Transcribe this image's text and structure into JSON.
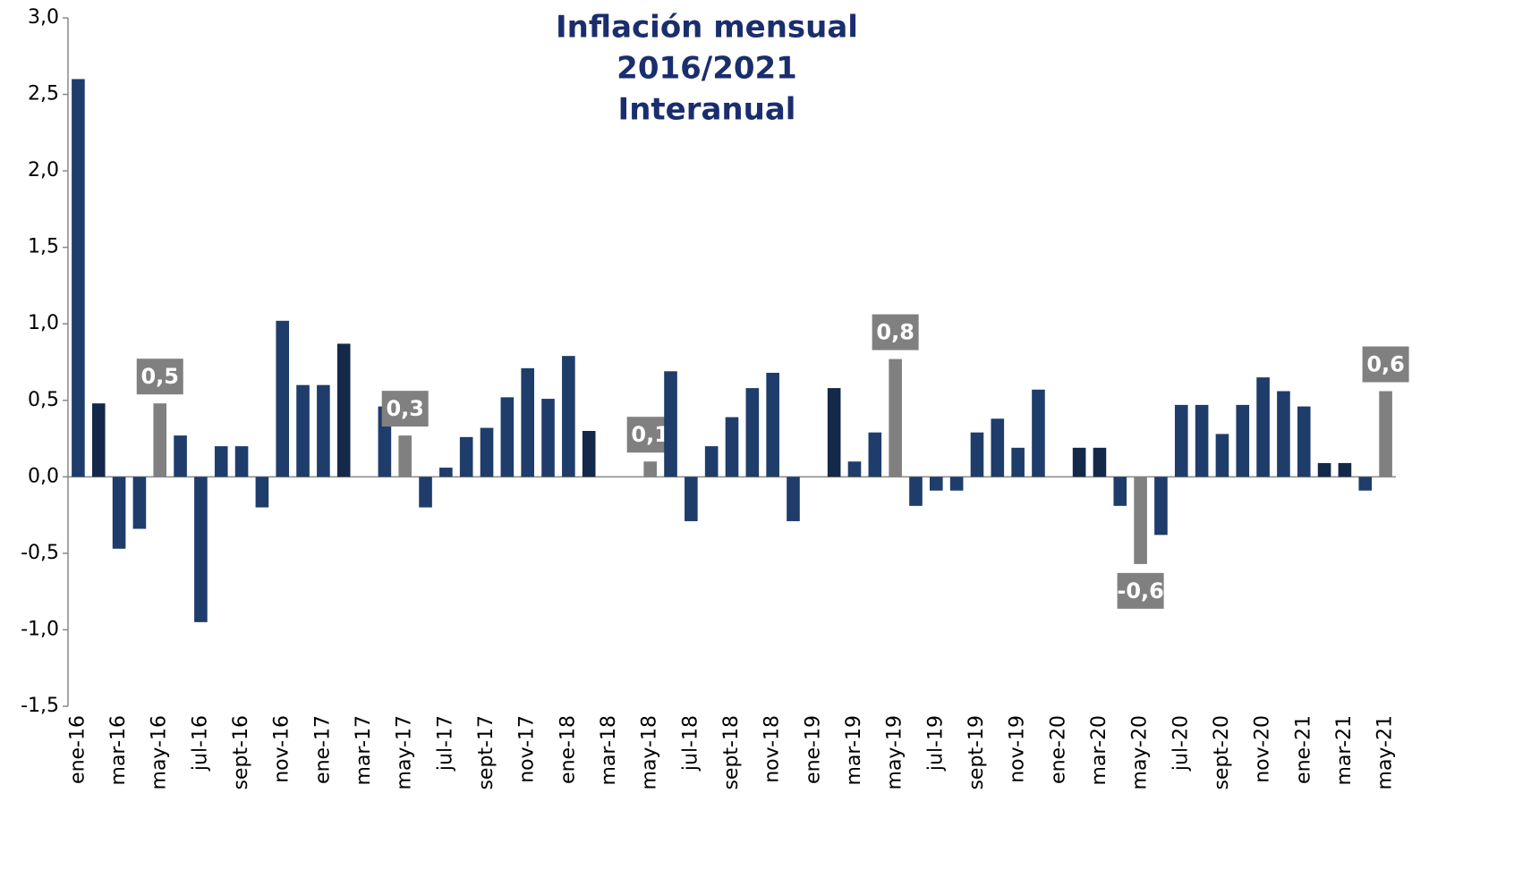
{
  "chart_data": {
    "type": "bar",
    "title_lines": [
      "Inflación mensual",
      "2016/2021",
      "Interanual"
    ],
    "categories": [
      "ene-16",
      null,
      "mar-16",
      null,
      "may-16",
      null,
      "jul-16",
      null,
      "sept-16",
      null,
      "nov-16",
      null,
      "ene-17",
      null,
      "mar-17",
      null,
      "may-17",
      null,
      "jul-17",
      null,
      "sept-17",
      null,
      "nov-17",
      null,
      "ene-18",
      null,
      "mar-18",
      null,
      "may-18",
      null,
      "jul-18",
      null,
      "sept-18",
      null,
      "nov-18",
      null,
      "ene-19",
      null,
      "mar-19",
      null,
      "may-19",
      null,
      "jul-19",
      null,
      "sept-19",
      null,
      "nov-19",
      null,
      "ene-20",
      null,
      "mar-20",
      null,
      "may-20",
      null,
      "jul-20",
      null,
      "sept-20",
      null,
      "nov-20",
      null,
      "ene-21",
      null,
      "mar-21",
      null,
      "may-21"
    ],
    "values": [
      2.6,
      0.48,
      -0.47,
      -0.34,
      0.48,
      0.27,
      -0.95,
      0.2,
      0.2,
      -0.2,
      1.02,
      0.6,
      0.6,
      0.87,
      0,
      0.46,
      0.27,
      -0.2,
      0.06,
      0.26,
      0.32,
      0.52,
      0.71,
      0.51,
      0.79,
      0.3,
      0,
      0,
      0.1,
      0.69,
      -0.29,
      0.2,
      0.39,
      0.58,
      0.68,
      -0.29,
      0,
      0.58,
      0.1,
      0.29,
      0.77,
      -0.19,
      -0.09,
      -0.09,
      0.29,
      0.38,
      0.19,
      0.57,
      0,
      0.19,
      0.19,
      -0.19,
      -0.57,
      -0.38,
      0.47,
      0.47,
      0.28,
      0.47,
      0.65,
      0.56,
      0.46,
      0.09,
      0.09,
      -0.09,
      0.56
    ],
    "value_labels": [
      null,
      null,
      null,
      null,
      "0,5",
      null,
      null,
      null,
      null,
      null,
      null,
      null,
      null,
      null,
      null,
      null,
      "0,3",
      null,
      null,
      null,
      null,
      null,
      null,
      null,
      null,
      null,
      null,
      null,
      "0,1",
      null,
      null,
      null,
      null,
      null,
      null,
      null,
      null,
      null,
      null,
      null,
      "0,8",
      null,
      null,
      null,
      null,
      null,
      null,
      null,
      null,
      null,
      null,
      null,
      "-0,6",
      null,
      null,
      null,
      null,
      null,
      null,
      null,
      null,
      null,
      null,
      null,
      "0,6"
    ],
    "colors": [
      "#1f3d6b",
      "#14284a",
      "#1f3d6b",
      "#1f3d6b",
      "#808080",
      "#1f3d6b",
      "#1f3d6b",
      "#1f3d6b",
      "#1f3d6b",
      "#1f3d6b",
      "#1f3d6b",
      "#1f3d6b",
      "#1f3d6b",
      "#14284a",
      "#1f3d6b",
      "#1f3d6b",
      "#808080",
      "#1f3d6b",
      "#1f3d6b",
      "#1f3d6b",
      "#1f3d6b",
      "#1f3d6b",
      "#1f3d6b",
      "#1f3d6b",
      "#1f3d6b",
      "#14284a",
      "#1f3d6b",
      "#1f3d6b",
      "#808080",
      "#1f3d6b",
      "#1f3d6b",
      "#1f3d6b",
      "#1f3d6b",
      "#1f3d6b",
      "#1f3d6b",
      "#1f3d6b",
      "#1f3d6b",
      "#14284a",
      "#1f3d6b",
      "#1f3d6b",
      "#808080",
      "#1f3d6b",
      "#1f3d6b",
      "#1f3d6b",
      "#1f3d6b",
      "#1f3d6b",
      "#1f3d6b",
      "#1f3d6b",
      "#1f3d6b",
      "#14284a",
      "#14284a",
      "#1f3d6b",
      "#808080",
      "#1f3d6b",
      "#1f3d6b",
      "#1f3d6b",
      "#1f3d6b",
      "#1f3d6b",
      "#1f3d6b",
      "#1f3d6b",
      "#1f3d6b",
      "#14284a",
      "#14284a",
      "#1f3d6b",
      "#808080"
    ],
    "label_box_color": "#808080",
    "ylim": [
      -1.5,
      3.0
    ],
    "yticks": [
      {
        "value": -1.5,
        "label": "-1,5"
      },
      {
        "value": -1.0,
        "label": "-1,0"
      },
      {
        "value": -0.5,
        "label": "-0,5"
      },
      {
        "value": 0,
        "label": "0,0"
      },
      {
        "value": 0.5,
        "label": "0,5"
      },
      {
        "value": 1.0,
        "label": "1,0"
      },
      {
        "value": 1.5,
        "label": "1,5"
      },
      {
        "value": 2.0,
        "label": "2,0"
      },
      {
        "value": 2.5,
        "label": "2,5"
      },
      {
        "value": 3.0,
        "label": "3,0"
      }
    ],
    "grid": false
  }
}
